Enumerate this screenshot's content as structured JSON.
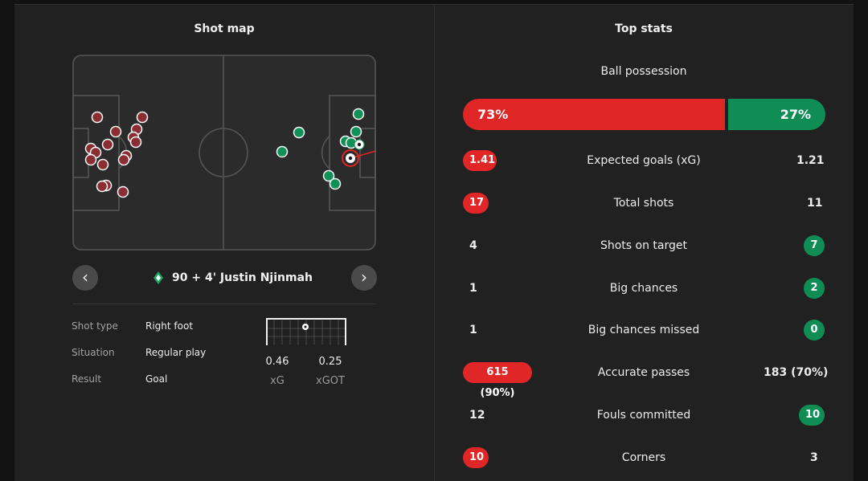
{
  "shot_map": {
    "title": "Shot map",
    "player": "90 + 4' Justin Njinmah",
    "details": [
      {
        "label": "Shot type",
        "value": "Right foot"
      },
      {
        "label": "Situation",
        "value": "Regular play"
      },
      {
        "label": "Result",
        "value": "Goal"
      }
    ],
    "xg": {
      "value": "0.46",
      "label": "xG"
    },
    "xgot": {
      "value": "0.25",
      "label": "xGOT"
    },
    "colors": {
      "home": "#8b2e33",
      "away": "#109158"
    }
  },
  "top_stats": {
    "title": "Top stats",
    "possession": {
      "label": "Ball possession",
      "home": "73%",
      "away": "27%"
    },
    "rows": [
      {
        "label": "Expected goals (xG)",
        "home": "1.41",
        "away": "1.21"
      },
      {
        "label": "Total shots",
        "home": "17",
        "away": "11"
      },
      {
        "label": "Shots on target",
        "home": "4",
        "away": "7"
      },
      {
        "label": "Big chances",
        "home": "1",
        "away": "2"
      },
      {
        "label": "Big chances missed",
        "home": "1",
        "away": "0"
      },
      {
        "label": "Accurate passes",
        "home": "615 (90%)",
        "away": "183 (70%)"
      },
      {
        "label": "Fouls committed",
        "home": "12",
        "away": "10"
      },
      {
        "label": "Corners",
        "home": "10",
        "away": "3"
      }
    ]
  }
}
